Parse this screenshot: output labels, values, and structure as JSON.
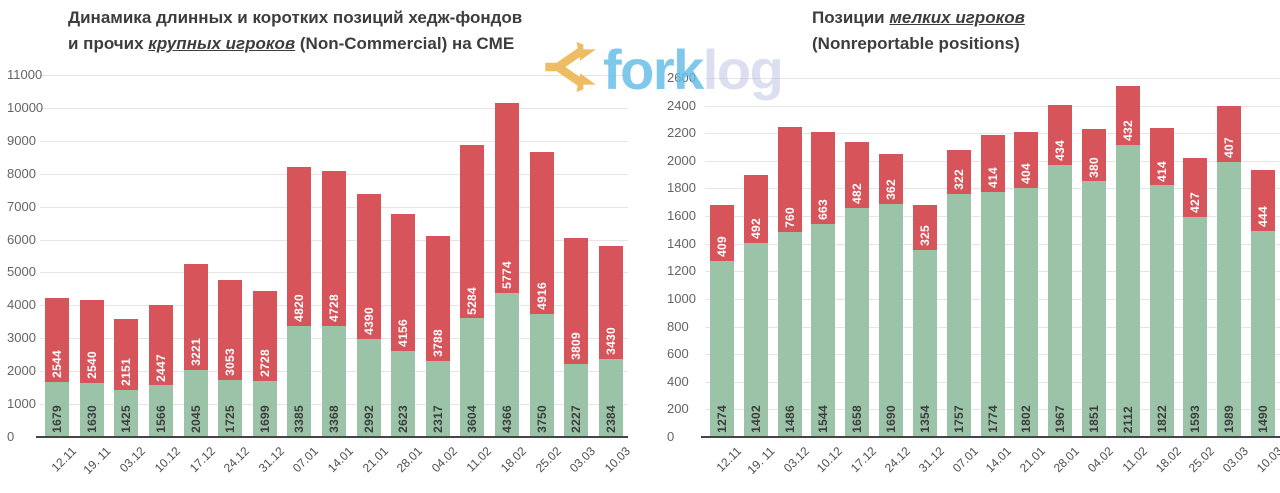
{
  "watermark": {
    "brand_part1": "fork",
    "brand_part2": "log",
    "icon": "forklog-fork-icon",
    "icon_color": "#ecb34e",
    "part1_color": "#62bce8",
    "part2_color": "#babfe0"
  },
  "chart_data": [
    {
      "type": "bar",
      "stacked": true,
      "title": "Динамика длинных и коротких позиций хедж-фондов и прочих крупных игроков (Non-Commercial) на CME",
      "title_lines": [
        [
          {
            "t": "Динамика длинных и коротких позиций хедж-фондов",
            "em": 0
          }
        ],
        [
          {
            "t": "и прочих ",
            "em": 0
          },
          {
            "t": "крупных игроков",
            "em": 1
          },
          {
            "t": " (Non-Commercial) на CME",
            "em": 0
          }
        ]
      ],
      "categories": [
        "12.11",
        "19. 11",
        "03.12",
        "10.12",
        "17.12",
        "24.12",
        "31.12",
        "07.01",
        "14.01",
        "21.01",
        "28.01",
        "04.02",
        "11.02",
        "18.02",
        "25.02",
        "03.03",
        "10.03"
      ],
      "series": [
        {
          "name": "long (green, bottom)",
          "color": "#9ac3a8",
          "label_color": "#3d3d3d",
          "values": [
            1679,
            1630,
            1425,
            1566,
            2045,
            1725,
            1699,
            3385,
            3368,
            2992,
            2623,
            2317,
            3604,
            4366,
            3750,
            2227,
            2384
          ]
        },
        {
          "name": "short (red, top)",
          "color": "#d6545a",
          "label_color": "#ffffff",
          "values": [
            2544,
            2540,
            2151,
            2447,
            3221,
            3053,
            2728,
            4820,
            4728,
            4390,
            4156,
            3788,
            5284,
            5774,
            4916,
            3809,
            3430
          ]
        }
      ],
      "ylim": [
        0,
        11000
      ],
      "ytick_step": 1000,
      "grid": true,
      "legend": "none"
    },
    {
      "type": "bar",
      "stacked": true,
      "title": "Позиции мелких игроков (Nonreportable positions)",
      "title_lines": [
        [
          {
            "t": "Позиции ",
            "em": 0
          },
          {
            "t": "мелких игроков",
            "em": 1
          }
        ],
        [
          {
            "t": "(Nonreportable positions)",
            "em": 0
          }
        ]
      ],
      "categories": [
        "12.11",
        "19. 11",
        "03.12",
        "10.12",
        "17.12",
        "24.12",
        "31.12",
        "07.01",
        "14.01",
        "21.01",
        "28.01",
        "04.02",
        "11.02",
        "18.02",
        "25.02",
        "03.03",
        "10.03"
      ],
      "series": [
        {
          "name": "long (green, bottom)",
          "color": "#9ac3a8",
          "label_color": "#3d3d3d",
          "values": [
            1274,
            1402,
            1486,
            1544,
            1658,
            1690,
            1354,
            1757,
            1774,
            1802,
            1967,
            1851,
            2112,
            1822,
            1593,
            1989,
            1490
          ]
        },
        {
          "name": "short (red, top)",
          "color": "#d6545a",
          "label_color": "#ffffff",
          "values": [
            409,
            492,
            760,
            663,
            482,
            362,
            325,
            322,
            414,
            404,
            434,
            380,
            432,
            414,
            427,
            407,
            444
          ]
        }
      ],
      "ylim": [
        0,
        2600
      ],
      "ytick_step": 200,
      "grid": true,
      "legend": "none"
    }
  ]
}
